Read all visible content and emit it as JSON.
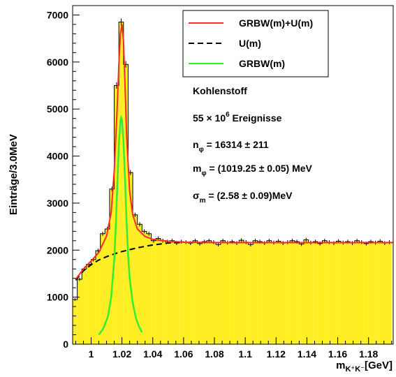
{
  "chart_data": {
    "type": "histogram",
    "title": "",
    "xlabel": "m",
    "xlabel_sub": "K⁺K⁻",
    "xlabel_unit": "[GeV]",
    "ylabel": "Einträge/3.0MeV",
    "xlim": [
      0.988,
      1.196
    ],
    "ylim": [
      0,
      7200
    ],
    "bin_width": 0.003,
    "x_ticks": [
      1,
      1.02,
      1.04,
      1.06,
      1.08,
      1.1,
      1.12,
      1.14,
      1.16,
      1.18
    ],
    "x_tick_labels": [
      "1",
      "1.02",
      "1.04",
      "1.06",
      "1.08",
      "1.1",
      "1.12",
      "1.14",
      "1.16",
      "1.18"
    ],
    "y_ticks": [
      0,
      1000,
      2000,
      3000,
      4000,
      5000,
      6000,
      7000
    ],
    "y_tick_labels": [
      "0",
      "1000",
      "2000",
      "3000",
      "4000",
      "5000",
      "6000",
      "7000"
    ],
    "histogram": {
      "bin_starts": [
        0.988,
        0.991,
        0.994,
        0.997,
        1.0,
        1.003,
        1.006,
        1.009,
        1.012,
        1.015,
        1.018,
        1.021,
        1.024,
        1.027,
        1.03,
        1.033,
        1.036,
        1.039,
        1.042,
        1.045,
        1.048,
        1.051,
        1.054,
        1.057,
        1.06,
        1.063,
        1.066,
        1.069,
        1.072,
        1.075,
        1.078,
        1.081,
        1.084,
        1.087,
        1.09,
        1.093,
        1.096,
        1.099,
        1.102,
        1.105,
        1.108,
        1.111,
        1.114,
        1.117,
        1.12,
        1.123,
        1.126,
        1.129,
        1.132,
        1.135,
        1.138,
        1.141,
        1.144,
        1.147,
        1.15,
        1.153,
        1.156,
        1.159,
        1.162,
        1.165,
        1.168,
        1.171,
        1.174,
        1.177,
        1.18,
        1.183,
        1.186,
        1.189,
        1.192
      ],
      "values": [
        950,
        1380,
        1600,
        1700,
        1800,
        1990,
        2350,
        2450,
        3300,
        5500,
        6850,
        5950,
        3650,
        2750,
        2550,
        2400,
        2350,
        2200,
        2250,
        2200,
        2180,
        2200,
        2150,
        2180,
        2170,
        2150,
        2200,
        2140,
        2180,
        2200,
        2170,
        2120,
        2200,
        2160,
        2180,
        2150,
        2210,
        2170,
        2120,
        2200,
        2180,
        2150,
        2200,
        2160,
        2190,
        2150,
        2170,
        2200,
        2180,
        2130,
        2220,
        2160,
        2180,
        2140,
        2200,
        2170,
        2150,
        2190,
        2160,
        2180,
        2150,
        2200,
        2170,
        2140,
        2180,
        2160,
        2190,
        2150,
        2170
      ]
    },
    "curves": {
      "total": {
        "x": [
          0.99,
          0.995,
          1.0,
          1.005,
          1.01,
          1.013,
          1.015,
          1.017,
          1.018,
          1.019,
          1.02,
          1.021,
          1.022,
          1.023,
          1.025,
          1.027,
          1.03,
          1.035,
          1.04,
          1.05,
          1.06,
          1.08,
          1.1,
          1.12,
          1.14,
          1.16,
          1.18,
          1.196
        ],
        "y": [
          1380,
          1600,
          1770,
          1950,
          2300,
          2800,
          3700,
          5100,
          5950,
          6600,
          6800,
          6450,
          5500,
          4450,
          3250,
          2750,
          2450,
          2290,
          2230,
          2190,
          2170,
          2160,
          2160,
          2160,
          2160,
          2160,
          2160,
          2160
        ]
      },
      "background": {
        "x": [
          0.99,
          0.995,
          1.0,
          1.005,
          1.01,
          1.015,
          1.02,
          1.025,
          1.03,
          1.035,
          1.04,
          1.045,
          1.05,
          1.055,
          1.06
        ],
        "y": [
          1360,
          1560,
          1690,
          1790,
          1860,
          1920,
          1970,
          2010,
          2050,
          2080,
          2110,
          2130,
          2150,
          2160,
          2165
        ]
      },
      "signal": {
        "x": [
          1.005,
          1.008,
          1.011,
          1.013,
          1.015,
          1.016,
          1.017,
          1.018,
          1.019,
          1.0195,
          1.02,
          1.021,
          1.022,
          1.023,
          1.024,
          1.025,
          1.027,
          1.029,
          1.031,
          1.033
        ],
        "y": [
          200,
          340,
          600,
          1000,
          1800,
          2500,
          3400,
          4250,
          4750,
          4820,
          4780,
          4300,
          3500,
          2600,
          1900,
          1400,
          880,
          560,
          380,
          250
        ]
      }
    },
    "legend": {
      "placement": "top-right",
      "entries": [
        {
          "label": "GRBW(m)+U(m)",
          "color": "#ff2a2a",
          "style": "solid"
        },
        {
          "label": "U(m)",
          "color": "#000000",
          "style": "dashed"
        },
        {
          "label": "GRBW(m)",
          "color": "#33ee33",
          "style": "solid"
        }
      ]
    },
    "annotations": {
      "material": "Kohlenstoff",
      "events_prefix": "55 × 10",
      "events_exp": "6",
      "events_suffix": " Ereignisse",
      "n_sym": "n",
      "n_sub": "φ",
      "n_value": " = 16314  ± 211",
      "m_sym": "m",
      "m_sub": "φ",
      "m_value": " = (1019.25  ± 0.05) MeV",
      "s_sym": "σ",
      "s_sub": "m",
      "s_value": " = (2.58  ± 0.09)MeV"
    },
    "colors": {
      "fill": "#ffee22",
      "hist_line": "#000000",
      "total": "#ff2a2a",
      "background": "#000000",
      "signal": "#33ee33"
    }
  }
}
